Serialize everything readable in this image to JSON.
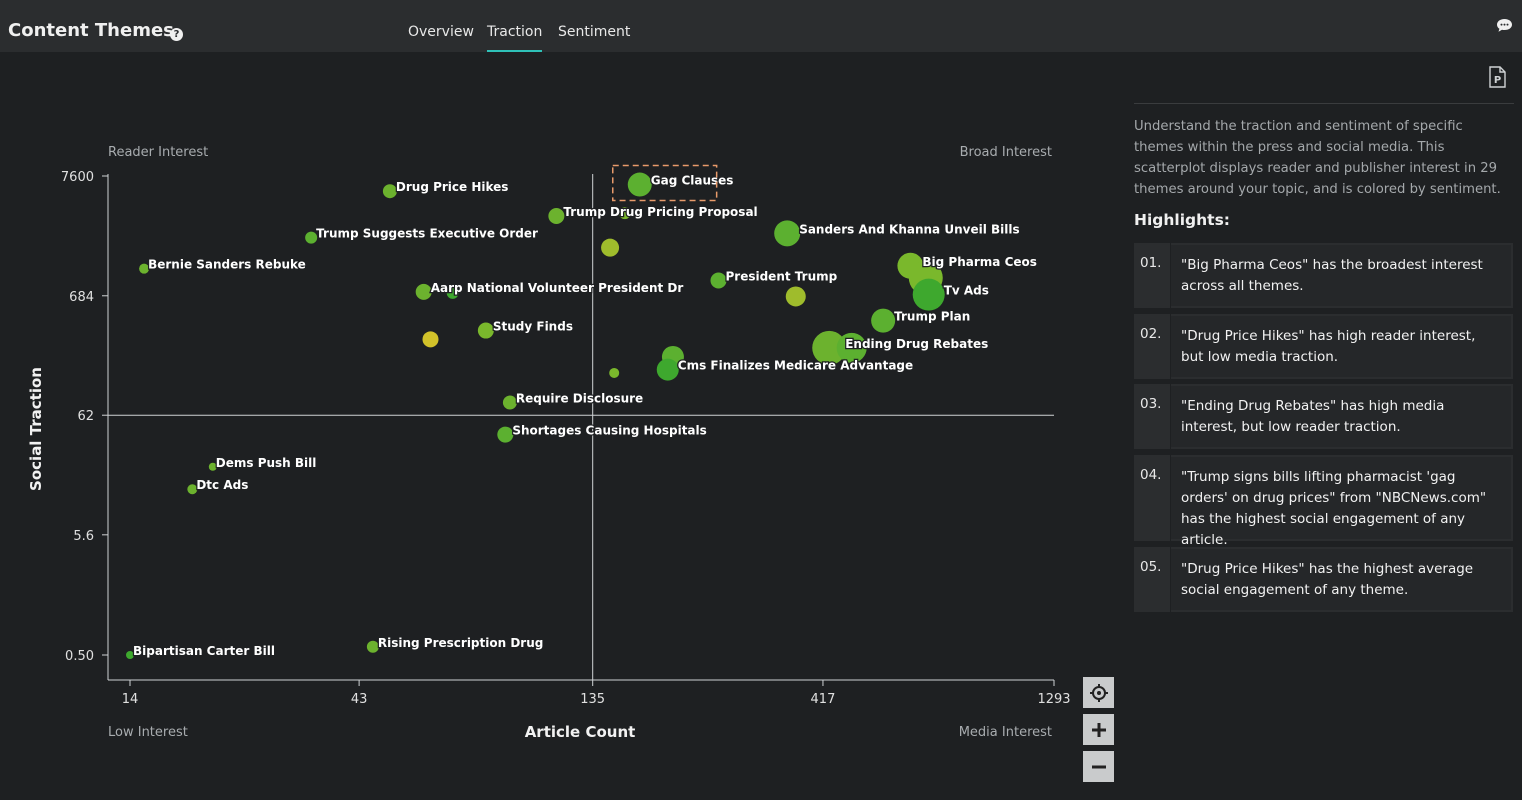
{
  "header": {
    "title": "Content Themes",
    "help_icon": "question-circle-icon",
    "tabs": [
      {
        "label": "Overview",
        "active": false
      },
      {
        "label": "Traction",
        "active": true
      },
      {
        "label": "Sentiment",
        "active": false
      }
    ],
    "chat_icon": "chat-bubble-icon"
  },
  "panel": {
    "pdf_icon": "pdf-export-icon",
    "description": "Understand the traction and sentiment of specific themes within the press and social media. This scatterplot displays reader and publisher interest in 29 themes around your topic, and is colored by sentiment.",
    "highlights_title": "Highlights:",
    "highlights": [
      {
        "num": "01.",
        "text": "\"Big Pharma Ceos\" has the broadest interest across all themes."
      },
      {
        "num": "02.",
        "text": "\"Drug Price Hikes\" has high reader interest, but low media traction."
      },
      {
        "num": "03.",
        "text": "\"Ending Drug Rebates\" has high media interest, but low reader traction."
      },
      {
        "num": "04.",
        "text": "\"Trump signs bills lifting pharmacist 'gag orders' on drug prices\" from \"NBCNews.com\" has the highest social engagement of any article."
      },
      {
        "num": "05.",
        "text": "\"Drug Price Hikes\" has the highest average social engagement of any theme."
      }
    ]
  },
  "controls": {
    "recenter_icon": "crosshair-icon",
    "zoom_in_icon": "plus-icon",
    "zoom_out_icon": "minus-icon"
  },
  "chart_data": {
    "type": "scatter",
    "xlabel": "Article Count",
    "ylabel": "Social Traction",
    "x_scale": "log",
    "y_scale": "log",
    "xlim": [
      14,
      1293
    ],
    "ylim": [
      0.5,
      7600
    ],
    "x_ticks": [
      "14",
      "43",
      "135",
      "417",
      "1293"
    ],
    "y_ticks": [
      "7600",
      "684",
      "62",
      "5.6",
      "0.50"
    ],
    "quadrants": {
      "top_left": "Reader Interest",
      "top_right": "Broad Interest",
      "bottom_left": "Low Interest",
      "bottom_right": "Media Interest"
    },
    "divider_x": 135,
    "divider_y": 62,
    "colors": {
      "green": "#3ea82e",
      "lime": "#7ab82c",
      "olive": "#9fbc2c",
      "yellow": "#d2c22a"
    },
    "points": [
      {
        "label": "Gag Clauses",
        "x": 170,
        "y": 6400,
        "size": 12,
        "color": "#5cb030",
        "highlighted": true
      },
      {
        "label": "Drug Price Hikes",
        "x": 50,
        "y": 5600,
        "size": 7,
        "color": "#6cb22e"
      },
      {
        "label": "Trump Drug Pricing Proposal",
        "x": 113,
        "y": 3400,
        "size": 8,
        "color": "#6cb22e"
      },
      {
        "label": "",
        "x": 158,
        "y": 3600,
        "size": 6,
        "color": "#7ab82c"
      },
      {
        "label": "Trump Suggests Executive Order",
        "x": 34,
        "y": 2200,
        "size": 6,
        "color": "#5cb030"
      },
      {
        "label": "",
        "x": 147,
        "y": 1800,
        "size": 9,
        "color": "#9fbc2c"
      },
      {
        "label": "Sanders And Khanna Unveil Bills",
        "x": 350,
        "y": 2400,
        "size": 13,
        "color": "#5cb030"
      },
      {
        "label": "Bernie Sanders Rebuke",
        "x": 15,
        "y": 1180,
        "size": 5,
        "color": "#6cb22e"
      },
      {
        "label": "Big Pharma Ceos",
        "x": 640,
        "y": 1250,
        "size": 13,
        "color": "#7ab82c"
      },
      {
        "label": "",
        "x": 690,
        "y": 980,
        "size": 17,
        "color": "#7ab82c"
      },
      {
        "label": "Tv Ads",
        "x": 700,
        "y": 700,
        "size": 16,
        "color": "#3ea82e"
      },
      {
        "label": "President Trump",
        "x": 250,
        "y": 930,
        "size": 8,
        "color": "#5cb030"
      },
      {
        "label": "",
        "x": 365,
        "y": 675,
        "size": 10,
        "color": "#9fbc2c"
      },
      {
        "label": "Aarp National Volunteer President Dr",
        "x": 59,
        "y": 740,
        "size": 8,
        "color": "#6cb22e"
      },
      {
        "label": "",
        "x": 68,
        "y": 725,
        "size": 6,
        "color": "#3ea82e"
      },
      {
        "label": "Trump Plan",
        "x": 560,
        "y": 415,
        "size": 12,
        "color": "#5cb030"
      },
      {
        "label": "Study Finds",
        "x": 80,
        "y": 340,
        "size": 8,
        "color": "#7ab82c"
      },
      {
        "label": "",
        "x": 61,
        "y": 285,
        "size": 8,
        "color": "#d2c22a"
      },
      {
        "label": "Ending Drug Rebates",
        "x": 430,
        "y": 240,
        "size": 17,
        "color": "#6cb22e"
      },
      {
        "label": "",
        "x": 480,
        "y": 240,
        "size": 15,
        "color": "#5cb030"
      },
      {
        "label": "",
        "x": 200,
        "y": 200,
        "size": 11,
        "color": "#5cb030"
      },
      {
        "label": "Cms Finalizes Medicare Advantage",
        "x": 195,
        "y": 155,
        "size": 11,
        "color": "#3ea82e"
      },
      {
        "label": "",
        "x": 150,
        "y": 145,
        "size": 5,
        "color": "#7ab82c"
      },
      {
        "label": "Require Disclosure",
        "x": 90,
        "y": 80,
        "size": 7,
        "color": "#6cb22e"
      },
      {
        "label": "Shortages Causing Hospitals",
        "x": 88,
        "y": 42,
        "size": 8,
        "color": "#5cb030"
      },
      {
        "label": "Dems Push Bill",
        "x": 21,
        "y": 22,
        "size": 4,
        "color": "#6cb22e"
      },
      {
        "label": "Dtc Ads",
        "x": 19,
        "y": 14,
        "size": 5,
        "color": "#6cb22e"
      },
      {
        "label": "Rising Prescription Drug",
        "x": 46,
        "y": 0.59,
        "size": 6,
        "color": "#6cb22e"
      },
      {
        "label": "Bipartisan Carter Bill",
        "x": 14,
        "y": 0.5,
        "size": 4,
        "color": "#3ea82e"
      }
    ]
  }
}
